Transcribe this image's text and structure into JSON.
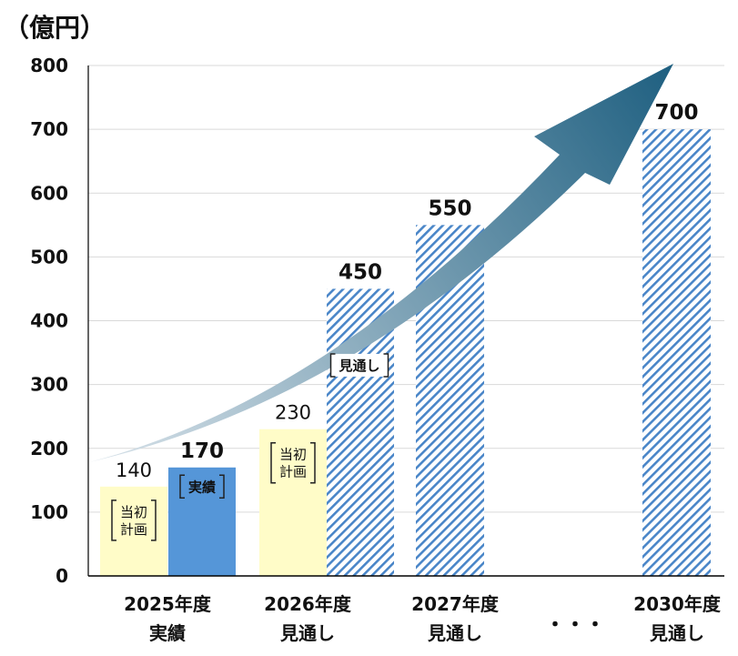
{
  "chart_data": {
    "type": "bar",
    "unit_label": "（億円）",
    "ylim": [
      0,
      800
    ],
    "yticks": [
      0,
      100,
      200,
      300,
      400,
      500,
      600,
      700,
      800
    ],
    "grid": true,
    "categories": [
      {
        "line1": "2025年度",
        "line2": "実績"
      },
      {
        "line1": "2026年度",
        "line2": "見通し"
      },
      {
        "line1": "2027年度",
        "line2": "見通し"
      },
      {
        "line1": "・・・",
        "line2": ""
      },
      {
        "line1": "2030年度",
        "line2": "見通し"
      }
    ],
    "bars": [
      {
        "category": 0,
        "slot": "left",
        "value": 140,
        "value_label": "140",
        "style": "plan",
        "tag": [
          "当初",
          "計画"
        ]
      },
      {
        "category": 0,
        "slot": "right",
        "value": 170,
        "value_label": "170",
        "style": "actual",
        "tag": [
          "実績"
        ]
      },
      {
        "category": 1,
        "slot": "left",
        "value": 230,
        "value_label": "230",
        "style": "plan",
        "tag": [
          "当初",
          "計画"
        ]
      },
      {
        "category": 1,
        "slot": "right",
        "value": 450,
        "value_label": "450",
        "style": "forecast",
        "tag": [
          "見通し"
        ]
      },
      {
        "category": 2,
        "slot": "single",
        "value": 550,
        "value_label": "550",
        "style": "forecast"
      },
      {
        "category": 4,
        "slot": "single",
        "value": 700,
        "value_label": "700",
        "style": "forecast"
      }
    ],
    "colors": {
      "plan": "#FFFCC8",
      "actual": "#5596D8",
      "forecast_stripe": "#4A86C8",
      "arrow_start": "#D9E3EA",
      "arrow_end": "#1E5F80",
      "grid": "#D9D9D9",
      "axis": "#000000"
    }
  }
}
